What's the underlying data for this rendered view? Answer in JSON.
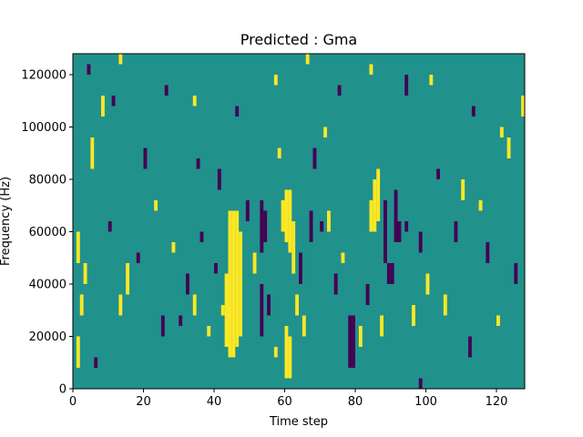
{
  "chart_data": {
    "type": "heatmap",
    "title": "Predicted : Gma",
    "xlabel": "Time step",
    "ylabel": "Frequency (Hz)",
    "xlim": [
      0,
      128
    ],
    "ylim": [
      0,
      128000
    ],
    "x_ticks": [
      0,
      20,
      40,
      60,
      80,
      100,
      120
    ],
    "y_ticks": [
      0,
      20000,
      40000,
      60000,
      80000,
      100000,
      120000
    ],
    "grid": false,
    "legend": "none",
    "colors": {
      "low": "#440154",
      "mid": "#21918c",
      "high": "#fde725"
    },
    "levels": {
      "background": 0,
      "low": -1,
      "high": 1
    },
    "cell_size": {
      "time_steps": 1,
      "frequency_hz": 4000
    },
    "cells": [
      {
        "t": 44,
        "f": [
          12,
          68
        ],
        "v": 1
      },
      {
        "t": 45,
        "f": [
          12,
          68
        ],
        "v": 1
      },
      {
        "t": 46,
        "f": [
          16,
          68
        ],
        "v": 1
      },
      {
        "t": 47,
        "f": [
          20,
          60
        ],
        "v": 1
      },
      {
        "t": 43,
        "f": [
          16,
          44
        ],
        "v": 1
      },
      {
        "t": 60,
        "f": [
          56,
          76
        ],
        "v": 1
      },
      {
        "t": 61,
        "f": [
          52,
          76
        ],
        "v": 1
      },
      {
        "t": 62,
        "f": [
          44,
          64
        ],
        "v": 1
      },
      {
        "t": 59,
        "f": [
          60,
          72
        ],
        "v": 1
      },
      {
        "t": 60,
        "f": [
          4,
          24
        ],
        "v": 1
      },
      {
        "t": 61,
        "f": [
          4,
          20
        ],
        "v": 1
      },
      {
        "t": 63,
        "f": [
          28,
          36
        ],
        "v": 1
      },
      {
        "t": 53,
        "f": [
          20,
          40
        ],
        "v": -1
      },
      {
        "t": 53,
        "f": [
          52,
          72
        ],
        "v": -1
      },
      {
        "t": 54,
        "f": [
          56,
          68
        ],
        "v": -1
      },
      {
        "t": 64,
        "f": [
          40,
          52
        ],
        "v": -1
      },
      {
        "t": 67,
        "f": [
          56,
          68
        ],
        "v": -1
      },
      {
        "t": 70,
        "f": [
          60,
          64
        ],
        "v": -1
      },
      {
        "t": 78,
        "f": [
          8,
          28
        ],
        "v": -1
      },
      {
        "t": 79,
        "f": [
          8,
          28
        ],
        "v": -1
      },
      {
        "t": 84,
        "f": [
          60,
          72
        ],
        "v": 1
      },
      {
        "t": 85,
        "f": [
          60,
          80
        ],
        "v": 1
      },
      {
        "t": 86,
        "f": [
          64,
          84
        ],
        "v": 1
      },
      {
        "t": 89,
        "f": [
          40,
          48
        ],
        "v": -1
      },
      {
        "t": 90,
        "f": [
          40,
          48
        ],
        "v": -1
      },
      {
        "t": 91,
        "f": [
          56,
          76
        ],
        "v": -1
      },
      {
        "t": 92,
        "f": [
          56,
          64
        ],
        "v": -1
      },
      {
        "t": 88,
        "f": [
          48,
          72
        ],
        "v": -1
      },
      {
        "t": 1,
        "f": [
          8,
          20
        ],
        "v": 1
      },
      {
        "t": 1,
        "f": [
          48,
          60
        ],
        "v": 1
      },
      {
        "t": 2,
        "f": [
          28,
          36
        ],
        "v": 1
      },
      {
        "t": 3,
        "f": [
          40,
          48
        ],
        "v": 1
      },
      {
        "t": 5,
        "f": [
          84,
          96
        ],
        "v": 1
      },
      {
        "t": 6,
        "f": [
          8,
          12
        ],
        "v": -1
      },
      {
        "t": 8,
        "f": [
          104,
          112
        ],
        "v": 1
      },
      {
        "t": 10,
        "f": [
          60,
          64
        ],
        "v": -1
      },
      {
        "t": 13,
        "f": [
          28,
          36
        ],
        "v": 1
      },
      {
        "t": 15,
        "f": [
          36,
          48
        ],
        "v": 1
      },
      {
        "t": 18,
        "f": [
          48,
          52
        ],
        "v": -1
      },
      {
        "t": 20,
        "f": [
          84,
          92
        ],
        "v": -1
      },
      {
        "t": 23,
        "f": [
          68,
          72
        ],
        "v": 1
      },
      {
        "t": 25,
        "f": [
          20,
          28
        ],
        "v": -1
      },
      {
        "t": 28,
        "f": [
          52,
          56
        ],
        "v": 1
      },
      {
        "t": 30,
        "f": [
          24,
          28
        ],
        "v": -1
      },
      {
        "t": 32,
        "f": [
          36,
          44
        ],
        "v": -1
      },
      {
        "t": 34,
        "f": [
          28,
          36
        ],
        "v": 1
      },
      {
        "t": 36,
        "f": [
          56,
          60
        ],
        "v": -1
      },
      {
        "t": 38,
        "f": [
          20,
          24
        ],
        "v": 1
      },
      {
        "t": 40,
        "f": [
          44,
          48
        ],
        "v": -1
      },
      {
        "t": 41,
        "f": [
          76,
          84
        ],
        "v": -1
      },
      {
        "t": 42,
        "f": [
          28,
          32
        ],
        "v": 1
      },
      {
        "t": 49,
        "f": [
          64,
          72
        ],
        "v": -1
      },
      {
        "t": 51,
        "f": [
          44,
          52
        ],
        "v": 1
      },
      {
        "t": 55,
        "f": [
          28,
          36
        ],
        "v": -1
      },
      {
        "t": 57,
        "f": [
          12,
          16
        ],
        "v": 1
      },
      {
        "t": 65,
        "f": [
          20,
          28
        ],
        "v": 1
      },
      {
        "t": 68,
        "f": [
          84,
          92
        ],
        "v": -1
      },
      {
        "t": 72,
        "f": [
          60,
          68
        ],
        "v": 1
      },
      {
        "t": 74,
        "f": [
          36,
          44
        ],
        "v": -1
      },
      {
        "t": 76,
        "f": [
          48,
          52
        ],
        "v": 1
      },
      {
        "t": 81,
        "f": [
          16,
          24
        ],
        "v": 1
      },
      {
        "t": 83,
        "f": [
          32,
          40
        ],
        "v": -1
      },
      {
        "t": 87,
        "f": [
          20,
          28
        ],
        "v": 1
      },
      {
        "t": 94,
        "f": [
          60,
          64
        ],
        "v": -1
      },
      {
        "t": 96,
        "f": [
          24,
          32
        ],
        "v": 1
      },
      {
        "t": 98,
        "f": [
          52,
          60
        ],
        "v": -1
      },
      {
        "t": 100,
        "f": [
          36,
          44
        ],
        "v": 1
      },
      {
        "t": 103,
        "f": [
          80,
          84
        ],
        "v": -1
      },
      {
        "t": 105,
        "f": [
          28,
          36
        ],
        "v": 1
      },
      {
        "t": 108,
        "f": [
          56,
          64
        ],
        "v": -1
      },
      {
        "t": 110,
        "f": [
          72,
          80
        ],
        "v": 1
      },
      {
        "t": 112,
        "f": [
          12,
          20
        ],
        "v": -1
      },
      {
        "t": 115,
        "f": [
          68,
          72
        ],
        "v": 1
      },
      {
        "t": 117,
        "f": [
          48,
          56
        ],
        "v": -1
      },
      {
        "t": 120,
        "f": [
          24,
          28
        ],
        "v": 1
      },
      {
        "t": 123,
        "f": [
          88,
          96
        ],
        "v": 1
      },
      {
        "t": 125,
        "f": [
          40,
          48
        ],
        "v": -1
      },
      {
        "t": 127,
        "f": [
          104,
          112
        ],
        "v": 1
      },
      {
        "t": 13,
        "f": [
          124,
          128
        ],
        "v": 1
      },
      {
        "t": 34,
        "f": [
          108,
          112
        ],
        "v": 1
      },
      {
        "t": 46,
        "f": [
          104,
          108
        ],
        "v": -1
      },
      {
        "t": 57,
        "f": [
          116,
          120
        ],
        "v": 1
      },
      {
        "t": 66,
        "f": [
          124,
          128
        ],
        "v": 1
      },
      {
        "t": 75,
        "f": [
          112,
          116
        ],
        "v": -1
      },
      {
        "t": 84,
        "f": [
          120,
          124
        ],
        "v": 1
      },
      {
        "t": 94,
        "f": [
          112,
          120
        ],
        "v": -1
      },
      {
        "t": 101,
        "f": [
          116,
          120
        ],
        "v": 1
      },
      {
        "t": 113,
        "f": [
          104,
          108
        ],
        "v": -1
      },
      {
        "t": 121,
        "f": [
          96,
          100
        ],
        "v": 1
      },
      {
        "t": 4,
        "f": [
          120,
          124
        ],
        "v": -1
      },
      {
        "t": 26,
        "f": [
          112,
          116
        ],
        "v": -1
      },
      {
        "t": 71,
        "f": [
          96,
          100
        ],
        "v": 1
      },
      {
        "t": 98,
        "f": [
          0,
          4
        ],
        "v": -1
      },
      {
        "t": 11,
        "f": [
          108,
          112
        ],
        "v": -1
      },
      {
        "t": 58,
        "f": [
          88,
          92
        ],
        "v": 1
      },
      {
        "t": 35,
        "f": [
          84,
          88
        ],
        "v": -1
      }
    ]
  }
}
